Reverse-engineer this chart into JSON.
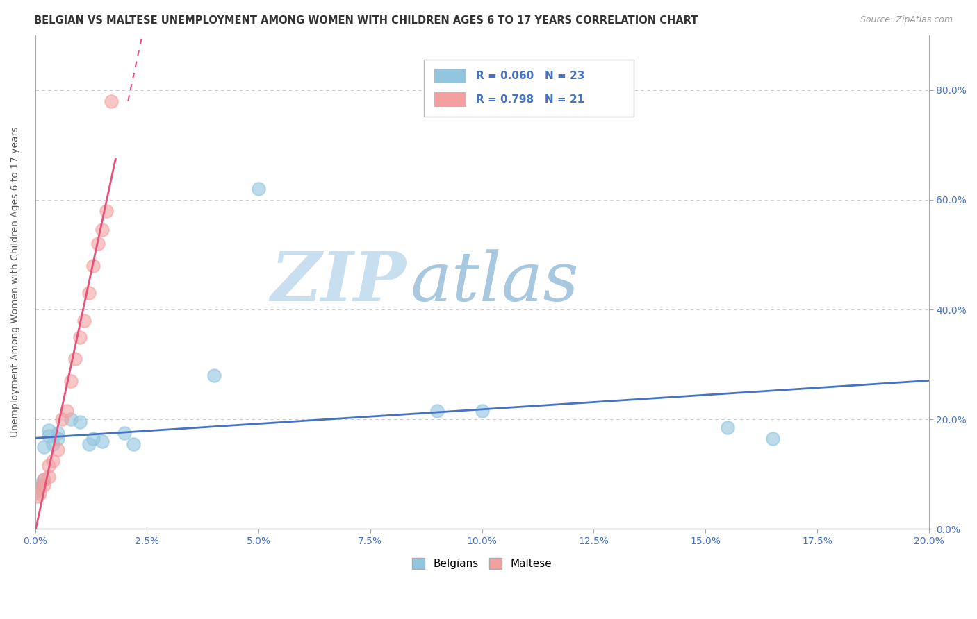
{
  "title": "BELGIAN VS MALTESE UNEMPLOYMENT AMONG WOMEN WITH CHILDREN AGES 6 TO 17 YEARS CORRELATION CHART",
  "source": "Source: ZipAtlas.com",
  "xlabel_range": [
    0.0,
    0.2
  ],
  "ylabel_range": [
    0.0,
    0.9
  ],
  "legend_r_belgians": "R = 0.060",
  "legend_n_belgians": "N = 23",
  "legend_r_maltese": "R = 0.798",
  "legend_n_maltese": "N = 21",
  "belgians_x": [
    0.0005,
    0.001,
    0.001,
    0.002,
    0.002,
    0.003,
    0.003,
    0.004,
    0.005,
    0.005,
    0.008,
    0.01,
    0.012,
    0.013,
    0.015,
    0.02,
    0.022,
    0.04,
    0.05,
    0.09,
    0.1,
    0.155,
    0.165
  ],
  "belgians_y": [
    0.07,
    0.075,
    0.08,
    0.09,
    0.15,
    0.17,
    0.18,
    0.155,
    0.165,
    0.175,
    0.2,
    0.195,
    0.155,
    0.165,
    0.16,
    0.175,
    0.155,
    0.28,
    0.62,
    0.215,
    0.215,
    0.185,
    0.165
  ],
  "maltese_x": [
    0.0005,
    0.001,
    0.001,
    0.002,
    0.002,
    0.003,
    0.003,
    0.004,
    0.005,
    0.006,
    0.007,
    0.008,
    0.009,
    0.01,
    0.011,
    0.012,
    0.013,
    0.014,
    0.015,
    0.016,
    0.017
  ],
  "maltese_y": [
    0.06,
    0.065,
    0.075,
    0.08,
    0.09,
    0.095,
    0.115,
    0.125,
    0.145,
    0.2,
    0.215,
    0.27,
    0.31,
    0.35,
    0.38,
    0.43,
    0.48,
    0.52,
    0.545,
    0.58,
    0.78
  ],
  "color_belgians": "#92c5de",
  "color_maltese": "#f4a0a0",
  "color_trendline_belgians": "#4472c4",
  "color_trendline_maltese": "#e8507a",
  "background_color": "#ffffff",
  "watermark_zip": "ZIP",
  "watermark_atlas": "atlas",
  "watermark_color_zip": "#c8dff0",
  "watermark_color_atlas": "#a8c8e0"
}
